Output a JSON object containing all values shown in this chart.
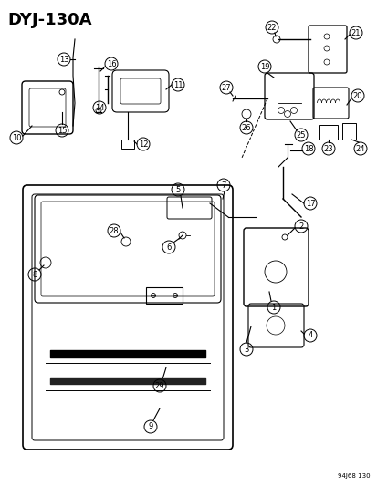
{
  "title": "DYJ-130A",
  "subtitle": "94J68 130",
  "bg_color": "#ffffff",
  "line_color": "#000000",
  "title_fontsize": 13,
  "label_fontsize": 8,
  "part_numbers": [
    1,
    2,
    3,
    4,
    5,
    6,
    7,
    8,
    9,
    10,
    11,
    12,
    13,
    14,
    15,
    16,
    17,
    18,
    19,
    20,
    21,
    22,
    23,
    24,
    25,
    26,
    27,
    28,
    29
  ],
  "figsize": [
    4.14,
    5.33
  ],
  "dpi": 100
}
